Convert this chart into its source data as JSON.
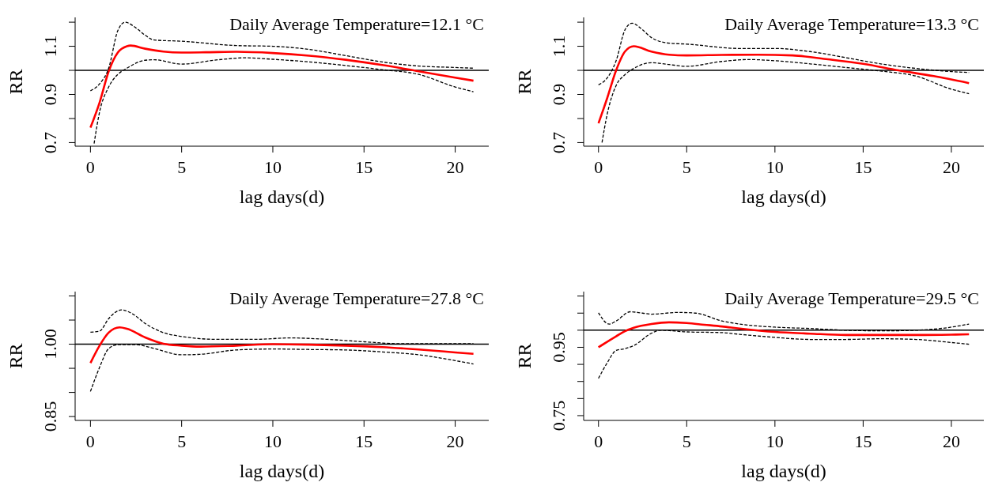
{
  "chart_data": [
    {
      "type": "line",
      "title": "Daily Average Temperature=12.1 °C",
      "xlabel": "lag days(d)",
      "ylabel": "RR",
      "xlim": [
        -0.84,
        21.84
      ],
      "xticks": [
        0,
        5,
        10,
        15,
        20
      ],
      "ylim": [
        0.685,
        1.22
      ],
      "yticks": [
        0.7,
        {
          "value": 0.8,
          "label": null
        },
        0.9,
        {
          "value": 1.0,
          "label": null
        },
        1.1,
        {
          "value": 1.2,
          "label": null
        }
      ],
      "marker": "none",
      "ref_lines": [
        {
          "axis": "y",
          "value": 1,
          "color": "#000000",
          "line_style": "solid"
        }
      ],
      "series": [
        {
          "color": "#ff0000",
          "line_style": "solid",
          "x": [
            0,
            0.5,
            1,
            1.5,
            2,
            2.2,
            3,
            4,
            5,
            7,
            8,
            10,
            12,
            14,
            16,
            18,
            20,
            21
          ],
          "values": [
            0.762,
            0.866,
            0.996,
            1.074,
            1.1,
            1.103,
            1.09,
            1.078,
            1.074,
            1.076,
            1.077,
            1.072,
            1.061,
            1.044,
            1.022,
            0.996,
            0.97,
            0.957
          ]
        },
        {
          "color": "#000000",
          "line_style": "dashed",
          "x": [
            0,
            0.5,
            1,
            1.5,
            1.9,
            2.5,
            3,
            3.5,
            5,
            8,
            10,
            12,
            14,
            16,
            18,
            20,
            21
          ],
          "values": [
            0.915,
            0.944,
            1.009,
            1.165,
            1.2,
            1.176,
            1.146,
            1.126,
            1.121,
            1.103,
            1.1,
            1.087,
            1.061,
            1.035,
            1.018,
            1.012,
            1.009
          ]
        },
        {
          "color": "#000000",
          "line_style": "dashed",
          "x": [
            0.2,
            0.5,
            1,
            1.5,
            2,
            3,
            3.5,
            5,
            7,
            8.5,
            10,
            12,
            14,
            16,
            18,
            20,
            21
          ],
          "values": [
            0.696,
            0.827,
            0.931,
            0.983,
            1.009,
            1.042,
            1.044,
            1.026,
            1.044,
            1.052,
            1.046,
            1.035,
            1.02,
            1.003,
            0.983,
            0.931,
            0.911
          ]
        }
      ]
    },
    {
      "type": "line",
      "title": "Daily Average Temperature=13.3 °C",
      "xlabel": "lag days(d)",
      "ylabel": "RR",
      "xlim": [
        -0.84,
        21.84
      ],
      "xticks": [
        0,
        5,
        10,
        15,
        20
      ],
      "ylim": [
        0.685,
        1.22
      ],
      "yticks": [
        0.7,
        {
          "value": 0.8,
          "label": null
        },
        0.9,
        {
          "value": 1.0,
          "label": null
        },
        1.1,
        {
          "value": 1.2,
          "label": null
        }
      ],
      "marker": "none",
      "ref_lines": [
        {
          "axis": "y",
          "value": 1,
          "color": "#000000",
          "line_style": "solid"
        }
      ],
      "series": [
        {
          "color": "#ff0000",
          "line_style": "solid",
          "x": [
            0,
            0.5,
            1,
            1.5,
            2,
            3,
            4,
            5,
            7,
            9,
            11,
            13,
            15,
            17,
            19,
            21
          ],
          "values": [
            0.78,
            0.886,
            1.0,
            1.078,
            1.1,
            1.078,
            1.065,
            1.062,
            1.064,
            1.065,
            1.062,
            1.046,
            1.027,
            1.0,
            0.976,
            0.947
          ]
        },
        {
          "color": "#000000",
          "line_style": "dashed",
          "x": [
            0,
            0.5,
            1,
            1.5,
            1.9,
            2.5,
            3,
            4,
            5,
            8,
            10,
            12,
            14,
            16,
            18,
            20,
            21
          ],
          "values": [
            0.94,
            0.969,
            1.04,
            1.168,
            1.196,
            1.168,
            1.136,
            1.113,
            1.109,
            1.091,
            1.091,
            1.078,
            1.053,
            1.027,
            1.008,
            0.995,
            0.991
          ]
        },
        {
          "color": "#000000",
          "line_style": "dashed",
          "x": [
            0.2,
            0.5,
            1,
            1.5,
            2,
            3,
            4,
            5,
            7,
            8.5,
            10,
            12,
            14,
            16,
            18,
            20,
            21
          ],
          "values": [
            0.7,
            0.82,
            0.937,
            0.982,
            1.008,
            1.032,
            1.024,
            1.017,
            1.037,
            1.045,
            1.04,
            1.027,
            1.012,
            0.997,
            0.976,
            0.922,
            0.903
          ]
        }
      ]
    },
    {
      "type": "line",
      "title": "Daily Average Temperature=27.8 °C",
      "xlabel": "lag days(d)",
      "ylabel": "RR",
      "xlim": [
        -0.84,
        21.84
      ],
      "xticks": [
        0,
        5,
        10,
        15,
        20
      ],
      "ylim": [
        0.842,
        1.109
      ],
      "yticks": [
        0.85,
        {
          "value": 0.9,
          "label": null
        },
        {
          "value": 0.95,
          "label": null
        },
        {
          "value": 1.0,
          "label": "1.00"
        },
        {
          "value": 1.05,
          "label": null
        },
        {
          "value": 1.1,
          "label": null
        }
      ],
      "marker": "none",
      "ref_lines": [
        {
          "axis": "y",
          "value": 1,
          "color": "#000000",
          "line_style": "solid"
        }
      ],
      "series": [
        {
          "color": "#ff0000",
          "line_style": "solid",
          "x": [
            0,
            0.5,
            1,
            1.6,
            2,
            3,
            4,
            5,
            6,
            8,
            10,
            12,
            14,
            16,
            18,
            20,
            21
          ],
          "values": [
            0.961,
            0.997,
            1.024,
            1.035,
            1.032,
            1.014,
            1.001,
            0.997,
            0.995,
            0.997,
            1.0,
            0.999,
            0.997,
            0.994,
            0.989,
            0.983,
            0.98
          ]
        },
        {
          "color": "#000000",
          "line_style": "dashed",
          "x": [
            0,
            0.5,
            1,
            1.7,
            2.3,
            3,
            4,
            5,
            7,
            9,
            11,
            13,
            15,
            17,
            19,
            21
          ],
          "values": [
            1.025,
            1.027,
            1.053,
            1.071,
            1.063,
            1.043,
            1.024,
            1.016,
            1.01,
            1.01,
            1.013,
            1.01,
            1.005,
            1.001,
            1.001,
            1.001
          ]
        },
        {
          "color": "#000000",
          "line_style": "dashed",
          "x": [
            0,
            0.5,
            1,
            1.5,
            2.5,
            3.5,
            5,
            6,
            8,
            10,
            12,
            14,
            16,
            18,
            20,
            21
          ],
          "values": [
            0.902,
            0.952,
            0.991,
            0.999,
            0.999,
            0.991,
            0.978,
            0.979,
            0.988,
            0.99,
            0.989,
            0.988,
            0.984,
            0.978,
            0.966,
            0.959
          ]
        }
      ]
    },
    {
      "type": "line",
      "title": "Daily Average Temperature=29.5 °C",
      "xlabel": "lag days(d)",
      "ylabel": "RR",
      "xlim": [
        -0.84,
        21.84
      ],
      "xticks": [
        0,
        5,
        10,
        15,
        20
      ],
      "ylim": [
        0.736,
        1.113
      ],
      "yticks": [
        0.75,
        {
          "value": 0.8,
          "label": null
        },
        {
          "value": 0.85,
          "label": null
        },
        {
          "value": 0.9,
          "label": null
        },
        0.95,
        {
          "value": 1.0,
          "label": null
        },
        {
          "value": 1.05,
          "label": null
        },
        {
          "value": 1.1,
          "label": null
        }
      ],
      "marker": "none",
      "ref_lines": [
        {
          "axis": "y",
          "value": 1,
          "color": "#000000",
          "line_style": "solid"
        }
      ],
      "series": [
        {
          "color": "#ff0000",
          "line_style": "solid",
          "x": [
            0,
            1,
            1.5,
            2,
            3,
            4,
            5,
            6,
            7,
            8,
            10,
            12,
            14,
            16,
            18,
            20,
            21
          ],
          "values": [
            0.95,
            0.982,
            0.997,
            1.007,
            1.018,
            1.023,
            1.021,
            1.016,
            1.011,
            1.005,
            0.995,
            0.99,
            0.986,
            0.986,
            0.986,
            0.987,
            0.988
          ]
        },
        {
          "color": "#000000",
          "line_style": "dashed",
          "x": [
            0,
            0.6,
            1,
            1.8,
            2.5,
            3,
            4.5,
            5.5,
            7,
            8,
            10,
            12,
            14,
            16,
            18,
            20,
            21
          ],
          "values": [
            1.051,
            1.018,
            1.027,
            1.054,
            1.05,
            1.047,
            1.052,
            1.05,
            1.027,
            1.018,
            1.009,
            1.005,
            1.0,
            0.998,
            1.0,
            1.009,
            1.018
          ]
        },
        {
          "color": "#000000",
          "line_style": "dashed",
          "x": [
            0,
            0.5,
            1,
            1.5,
            2,
            3,
            3.5,
            5,
            7,
            8,
            10,
            12,
            14,
            16,
            18,
            20,
            21
          ],
          "values": [
            0.859,
            0.905,
            0.941,
            0.946,
            0.955,
            0.991,
            1.0,
            0.995,
            0.993,
            0.988,
            0.979,
            0.973,
            0.973,
            0.975,
            0.973,
            0.964,
            0.959
          ]
        }
      ]
    }
  ]
}
